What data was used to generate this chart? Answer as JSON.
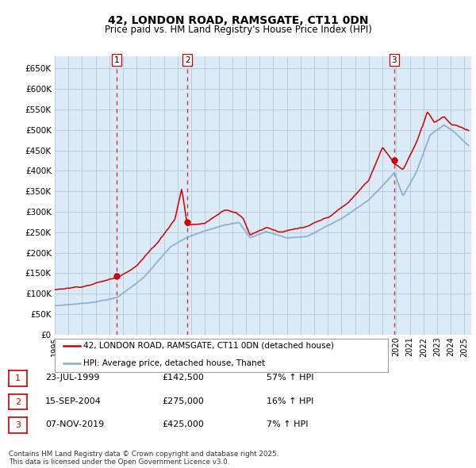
{
  "title": "42, LONDON ROAD, RAMSGATE, CT11 0DN",
  "subtitle": "Price paid vs. HM Land Registry's House Price Index (HPI)",
  "ylim": [
    0,
    680000
  ],
  "yticks": [
    0,
    50000,
    100000,
    150000,
    200000,
    250000,
    300000,
    350000,
    400000,
    450000,
    500000,
    550000,
    600000,
    650000
  ],
  "xlim_start": 1995.0,
  "xlim_end": 2025.5,
  "red_color": "#cc0000",
  "blue_color": "#88aacc",
  "sale_points": [
    {
      "year": 1999.55,
      "price": 142500,
      "label": "1"
    },
    {
      "year": 2004.71,
      "price": 275000,
      "label": "2"
    },
    {
      "year": 2019.86,
      "price": 425000,
      "label": "3"
    }
  ],
  "legend_entries": [
    "42, LONDON ROAD, RAMSGATE, CT11 0DN (detached house)",
    "HPI: Average price, detached house, Thanet"
  ],
  "table_rows": [
    {
      "num": "1",
      "date": "23-JUL-1999",
      "price": "£142,500",
      "pct": "57% ↑ HPI"
    },
    {
      "num": "2",
      "date": "15-SEP-2004",
      "price": "£275,000",
      "pct": "16% ↑ HPI"
    },
    {
      "num": "3",
      "date": "07-NOV-2019",
      "price": "£425,000",
      "pct": "7% ↑ HPI"
    }
  ],
  "footer": "Contains HM Land Registry data © Crown copyright and database right 2025.\nThis data is licensed under the Open Government Licence v3.0.",
  "grid_color": "#bbccdd",
  "background_color": "#daeaf7"
}
